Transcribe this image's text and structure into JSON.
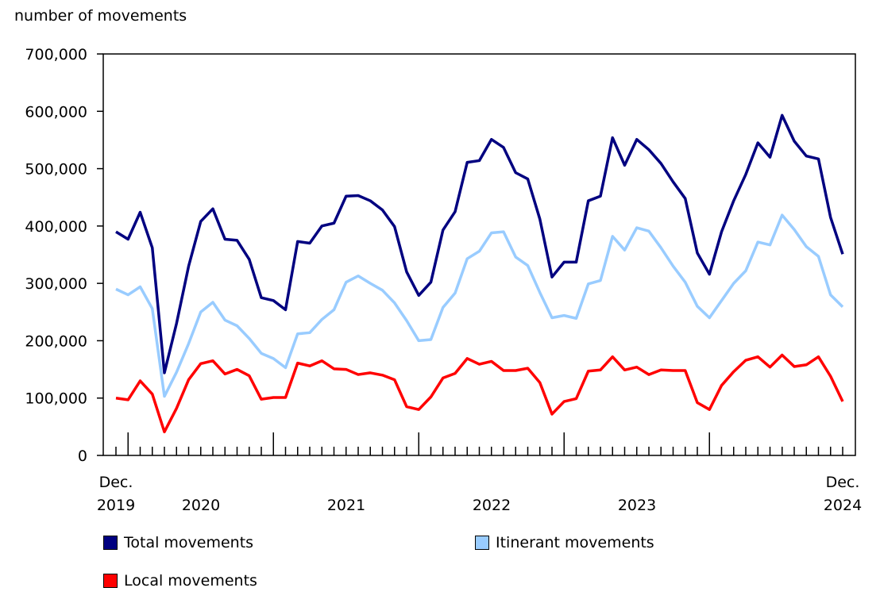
{
  "chart_data": {
    "type": "line",
    "ylabel": "number of movements",
    "ylim": [
      0,
      700000
    ],
    "yticks": [
      "0",
      "100,000",
      "200,000",
      "300,000",
      "400,000",
      "500,000",
      "600,000",
      "700,000"
    ],
    "x_start": "Dec. 2019",
    "x_end": "Dec. 2024",
    "x_labels": {
      "first": [
        "Dec.",
        "2019"
      ],
      "years": [
        "2020",
        "2021",
        "2022",
        "2023"
      ],
      "last": [
        "Dec.",
        "2024"
      ]
    },
    "grid": false,
    "legend_position": "bottom",
    "series": [
      {
        "name": "Total movements",
        "color": "#000080",
        "values": [
          390000,
          377000,
          424000,
          362000,
          144000,
          230000,
          330000,
          408000,
          430000,
          377000,
          375000,
          342000,
          275000,
          270000,
          254000,
          373000,
          370000,
          400000,
          405000,
          452000,
          453000,
          444000,
          428000,
          399000,
          320000,
          279000,
          302000,
          393000,
          425000,
          511000,
          514000,
          551000,
          537000,
          493000,
          482000,
          412000,
          311000,
          337000,
          337000,
          444000,
          452000,
          554000,
          506000,
          551000,
          533000,
          509000,
          477000,
          448000,
          353000,
          316000,
          390000,
          444000,
          490000,
          545000,
          520000,
          593000,
          548000,
          522000,
          517000,
          415000,
          351000
        ]
      },
      {
        "name": "Itinerant movements",
        "color": "#99ccff",
        "values": [
          290000,
          280000,
          294000,
          256000,
          103000,
          145000,
          195000,
          250000,
          267000,
          236000,
          226000,
          204000,
          178000,
          169000,
          153000,
          212000,
          214000,
          237000,
          254000,
          302000,
          313000,
          300000,
          288000,
          266000,
          235000,
          200000,
          202000,
          258000,
          283000,
          343000,
          356000,
          388000,
          390000,
          346000,
          331000,
          284000,
          240000,
          244000,
          239000,
          299000,
          305000,
          382000,
          358000,
          397000,
          391000,
          362000,
          330000,
          302000,
          260000,
          240000,
          270000,
          300000,
          322000,
          372000,
          367000,
          419000,
          394000,
          364000,
          347000,
          280000,
          259000
        ]
      },
      {
        "name": "Local movements",
        "color": "#ff0000",
        "values": [
          100000,
          97000,
          130000,
          107000,
          41000,
          82000,
          132000,
          160000,
          165000,
          142000,
          150000,
          139000,
          98000,
          101000,
          101000,
          161000,
          156000,
          165000,
          151000,
          150000,
          141000,
          144000,
          140000,
          132000,
          85000,
          80000,
          102000,
          135000,
          143000,
          169000,
          159000,
          164000,
          148000,
          148000,
          152000,
          127000,
          72000,
          94000,
          99000,
          147000,
          149000,
          172000,
          149000,
          154000,
          141000,
          149000,
          148000,
          148000,
          92000,
          80000,
          122000,
          146000,
          166000,
          172000,
          154000,
          175000,
          155000,
          158000,
          172000,
          138000,
          94000
        ]
      }
    ]
  }
}
